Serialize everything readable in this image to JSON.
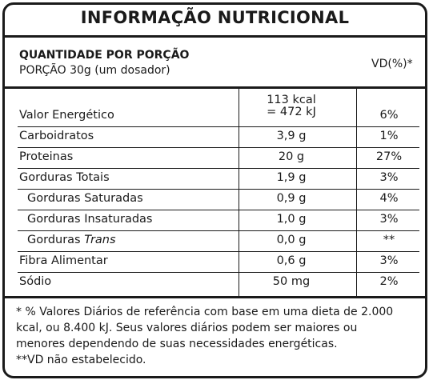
{
  "title": "INFORMAÇÃO NUTRICIONAL",
  "header": {
    "quantity_label": "QUANTIDADE POR PORÇÃO",
    "portion_label": "PORÇÃO 30g (um dosador)",
    "vd_label": "VD(%)*"
  },
  "rows": [
    {
      "name": "Valor Energético",
      "qty_line1": "113 kcal",
      "qty_line2": "= 472 kJ",
      "vd": "6%"
    },
    {
      "name": "Carboidratos",
      "qty": "3,9 g",
      "vd": "1%"
    },
    {
      "name": "Proteinas",
      "qty": "20 g",
      "vd": "27%"
    },
    {
      "name": "Gorduras Totais",
      "qty": "1,9 g",
      "vd": "3%"
    },
    {
      "name": "Gorduras Saturadas",
      "qty": "0,9 g",
      "vd": "4%"
    },
    {
      "name": "Gorduras Insaturadas",
      "qty": "1,0 g",
      "vd": "3%"
    },
    {
      "name_prefix": "Gorduras ",
      "name_italic": "Trans",
      "qty": "0,0 g",
      "vd": "**"
    },
    {
      "name": "Fibra Alimentar",
      "qty": "0,6 g",
      "vd": "3%"
    },
    {
      "name": "Sódio",
      "qty": "50 mg",
      "vd": "2%"
    }
  ],
  "footnotes": {
    "line1": "* % Valores Diários de referência com base em uma dieta de 2.000",
    "line2": "kcal, ou 8.400 kJ. Seus valores diários podem ser maiores ou",
    "line3": "menores dependendo de suas necessidades energéticas.",
    "line4": "**VD não estabelecido."
  }
}
